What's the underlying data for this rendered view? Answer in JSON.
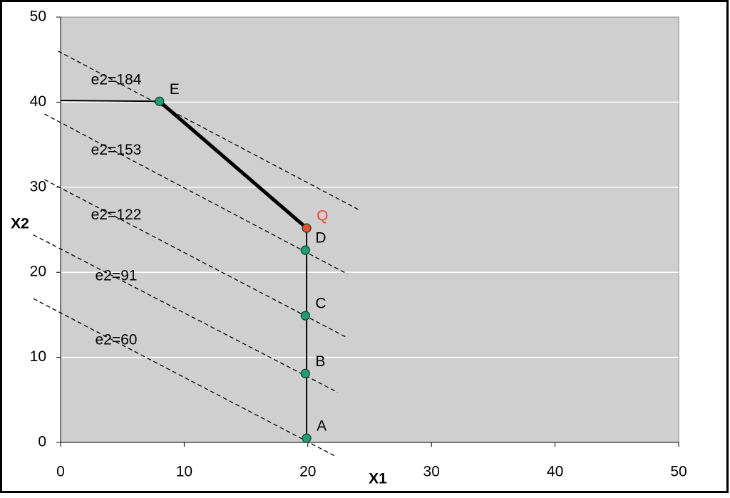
{
  "chart_data": {
    "type": "line",
    "x_label": "X1",
    "y_label": "X2",
    "xlim": [
      0,
      50
    ],
    "ylim": [
      0,
      50
    ],
    "xticks": [
      0,
      10,
      20,
      30,
      40,
      50
    ],
    "yticks": [
      0,
      10,
      20,
      30,
      40,
      50
    ],
    "grid": true,
    "background": "#cfcfcf",
    "series": [
      {
        "name": "e2=184",
        "color": "#000000",
        "style": "dashed",
        "width": 1.3,
        "x": [
          -0.2,
          24.2
        ],
        "y": [
          46,
          27.3
        ]
      },
      {
        "name": "e2=153",
        "color": "#000000",
        "style": "dashed",
        "width": 1.3,
        "x": [
          -1.3,
          23.2
        ],
        "y": [
          38.6,
          19.8
        ]
      },
      {
        "name": "e2=122",
        "color": "#000000",
        "style": "dashed",
        "width": 1.3,
        "x": [
          -1.3,
          23.2
        ],
        "y": [
          30.9,
          12.3
        ]
      },
      {
        "name": "e2=91",
        "color": "#000000",
        "style": "dashed",
        "width": 1.3,
        "x": [
          -2.2,
          22.4
        ],
        "y": [
          24.4,
          5.9
        ]
      },
      {
        "name": "e2=60",
        "color": "#000000",
        "style": "dashed",
        "width": 1.3,
        "x": [
          -2.2,
          22.2
        ],
        "y": [
          16.9,
          -1.6
        ]
      },
      {
        "color": "#000000",
        "style": "solid",
        "width": 2,
        "x": [
          0,
          8.0
        ],
        "y": [
          40.2,
          40.1
        ]
      },
      {
        "color": "#000000",
        "style": "solid",
        "width": 5,
        "x": [
          8.0,
          19.9
        ],
        "y": [
          40.1,
          25.2
        ]
      },
      {
        "color": "#000000",
        "style": "solid",
        "width": 2,
        "x": [
          19.9,
          19.9
        ],
        "y": [
          25.2,
          0.5
        ]
      }
    ],
    "points": {
      "labels": [
        "A",
        "B",
        "C",
        "D",
        "Q",
        "E"
      ],
      "x": [
        19.9,
        19.8,
        19.8,
        19.8,
        19.9,
        8.0
      ],
      "y": [
        0.5,
        8.1,
        14.9,
        22.6,
        25.2,
        40.1
      ],
      "colors": [
        "#1f9e74",
        "#1f9e74",
        "#1f9e74",
        "#1f9e74",
        "#e8502a",
        "#1f9e74"
      ],
      "label_colors": [
        "#000000",
        "#000000",
        "#000000",
        "#000000",
        "#e8502a",
        "#000000"
      ]
    }
  }
}
